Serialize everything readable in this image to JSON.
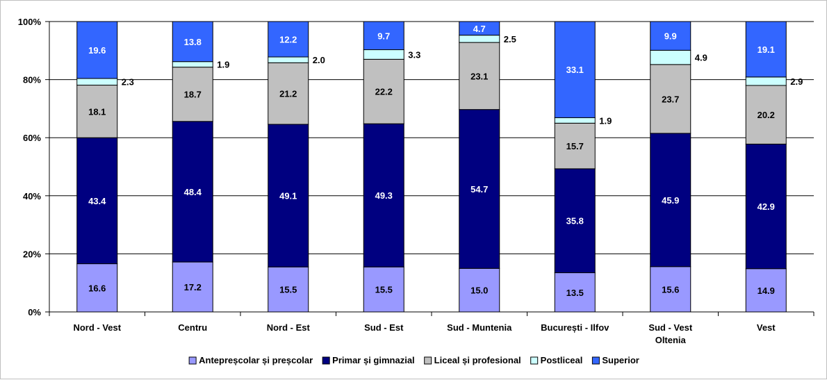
{
  "chart_data": {
    "type": "bar",
    "stacked": true,
    "normalized_percent": true,
    "categories": [
      [
        "Nord - Vest"
      ],
      [
        "Centru"
      ],
      [
        "Nord - Est"
      ],
      [
        "Sud - Est"
      ],
      [
        "Sud - Muntenia"
      ],
      [
        "București - Ilfov"
      ],
      [
        "Sud - Vest",
        "Oltenia"
      ],
      [
        "Vest"
      ]
    ],
    "series": [
      {
        "name": "Antepreșcolar și preșcolar",
        "color": "#9999ff",
        "label_color": "#000000",
        "values": [
          16.6,
          17.2,
          15.5,
          15.5,
          15.0,
          13.5,
          15.6,
          14.9
        ]
      },
      {
        "name": "Primar și gimnazial",
        "color": "#000080",
        "label_color": "#ffffff",
        "values": [
          43.4,
          48.4,
          49.1,
          49.3,
          54.7,
          35.8,
          45.9,
          42.9
        ]
      },
      {
        "name": "Liceal și profesional",
        "color": "#c0c0c0",
        "label_color": "#000000",
        "values": [
          18.1,
          18.7,
          21.2,
          22.2,
          23.1,
          15.7,
          23.7,
          20.2
        ]
      },
      {
        "name": "Postliceal",
        "color": "#ccffff",
        "label_color": "#000000",
        "label_position": "outside",
        "values": [
          2.3,
          1.9,
          2.0,
          3.3,
          2.5,
          1.9,
          4.9,
          2.9
        ]
      },
      {
        "name": "Superior",
        "color": "#3366ff",
        "label_color": "#ffffff",
        "values": [
          19.6,
          13.8,
          12.2,
          9.7,
          4.7,
          33.1,
          9.9,
          19.1
        ]
      }
    ],
    "y_ticks": [
      "0%",
      "20%",
      "40%",
      "60%",
      "80%",
      "100%"
    ],
    "ylim": [
      0,
      100
    ],
    "grid": true,
    "legend_position": "bottom",
    "title": "",
    "xlabel": "",
    "ylabel": ""
  }
}
